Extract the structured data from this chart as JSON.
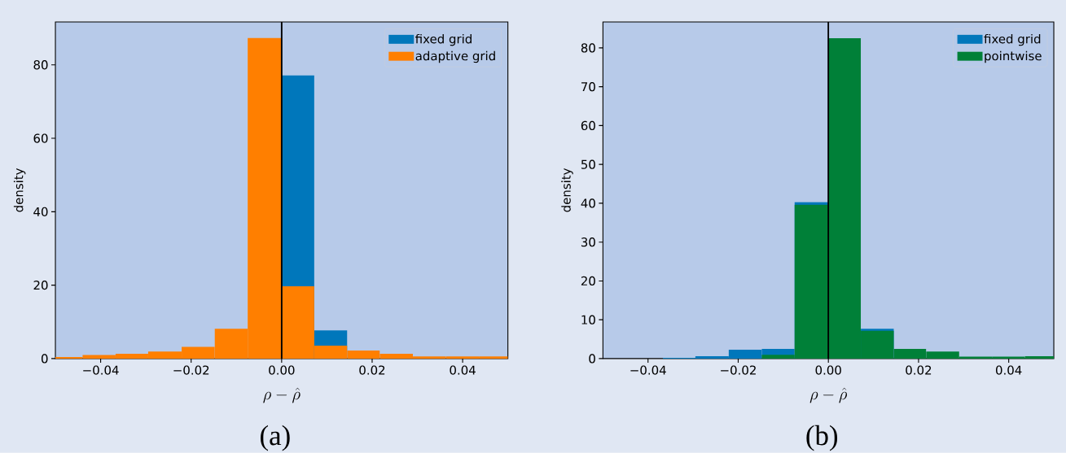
{
  "chart_data": [
    {
      "type": "histogram",
      "xlabel": "\\rho - \\hat{\\rho}",
      "ylabel": "density",
      "bins": [
        -0.05,
        -0.044,
        -0.0367,
        -0.0295,
        -0.0221,
        -0.0148,
        -0.0075,
        0,
        0.0072,
        0.0145,
        0.0217,
        0.029,
        0.0363,
        0.0436,
        0.05
      ],
      "series": [
        {
          "name": "fixed grid",
          "color": "#0077bb",
          "values": [
            null,
            null,
            null,
            null,
            null,
            null,
            null,
            77.1,
            7.7,
            null,
            null,
            null,
            null,
            null
          ]
        },
        {
          "name": "adaptive grid",
          "color": "#ff7f00",
          "values": [
            0.4,
            1.0,
            1.3,
            1.9,
            3.2,
            8.1,
            87.3,
            19.7,
            3.5,
            2.2,
            1.3,
            0.6,
            0.6,
            0.6
          ]
        }
      ],
      "xlim": [
        -0.05,
        0.05
      ],
      "ylim": [
        0,
        91.7
      ],
      "xticks": [
        {
          "value": -0.04,
          "label": "−0.04"
        },
        {
          "value": -0.02,
          "label": "−0.02"
        },
        {
          "value": 0,
          "label": "0.00"
        },
        {
          "value": 0.02,
          "label": "0.02"
        },
        {
          "value": 0.04,
          "label": "0.04"
        }
      ],
      "yticks": [
        0,
        20,
        40,
        60,
        80
      ],
      "ref_lines": [
        {
          "axis": "x",
          "value": 0,
          "color": "#000000"
        }
      ],
      "legend": "top right",
      "annotations": [
        "(a)"
      ]
    },
    {
      "type": "histogram",
      "xlabel": "\\rho - \\hat{\\rho}",
      "ylabel": "density",
      "bins": [
        -0.0367,
        -0.0295,
        -0.0221,
        -0.0148,
        -0.0075,
        0,
        0.0072,
        0.0145,
        0.0217,
        0.029,
        0.0363,
        0.0436,
        0.05
      ],
      "series": [
        {
          "name": "fixed grid",
          "color": "#0077bb",
          "values": [
            0.2,
            0.6,
            2.3,
            2.5,
            40.3,
            null,
            7.7,
            null,
            null,
            null,
            null,
            null
          ]
        },
        {
          "name": "pointwise",
          "color": "#008038",
          "values": [
            0,
            0,
            0,
            1.0,
            39.6,
            82.5,
            7.2,
            2.5,
            1.8,
            0.5,
            0.5,
            0.6
          ]
        }
      ],
      "xlim": [
        -0.05,
        0.05
      ],
      "ylim": [
        0,
        86.7
      ],
      "xticks": [
        {
          "value": -0.04,
          "label": "−0.04"
        },
        {
          "value": -0.02,
          "label": "−0.02"
        },
        {
          "value": 0,
          "label": "0.00"
        },
        {
          "value": 0.02,
          "label": "0.02"
        },
        {
          "value": 0.04,
          "label": "0.04"
        }
      ],
      "yticks": [
        0,
        10,
        20,
        30,
        40,
        50,
        60,
        70,
        80
      ],
      "ref_lines": [
        {
          "axis": "x",
          "value": 0,
          "color": "#000000"
        }
      ],
      "legend": "top right",
      "annotations": [
        "(b)"
      ]
    }
  ]
}
